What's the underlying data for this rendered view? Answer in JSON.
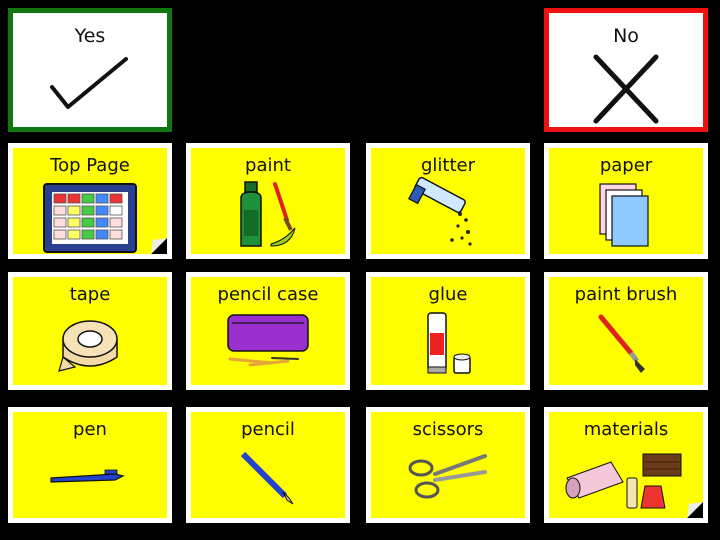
{
  "yes": {
    "label": "Yes",
    "color": "#117711"
  },
  "no": {
    "label": "No",
    "color": "#ee1111"
  },
  "tiles": [
    {
      "label": "Top Page",
      "icon": "grid-board-icon",
      "page_link": true
    },
    {
      "label": "paint",
      "icon": "paint-bottle-icon"
    },
    {
      "label": "glitter",
      "icon": "glitter-tube-icon"
    },
    {
      "label": "paper",
      "icon": "paper-stack-icon"
    },
    {
      "label": "tape",
      "icon": "tape-roll-icon"
    },
    {
      "label": "pencil case",
      "icon": "pencil-case-icon"
    },
    {
      "label": "glue",
      "icon": "glue-stick-icon"
    },
    {
      "label": "paint brush",
      "icon": "paint-brush-icon"
    },
    {
      "label": "pen",
      "icon": "pen-icon"
    },
    {
      "label": "pencil",
      "icon": "pencil-icon"
    },
    {
      "label": "scissors",
      "icon": "scissors-icon"
    },
    {
      "label": "materials",
      "icon": "materials-icon",
      "page_link": true
    }
  ],
  "colors": {
    "tile_bg": "#ffff00",
    "tile_border": "#ffffff",
    "background": "#000000"
  }
}
